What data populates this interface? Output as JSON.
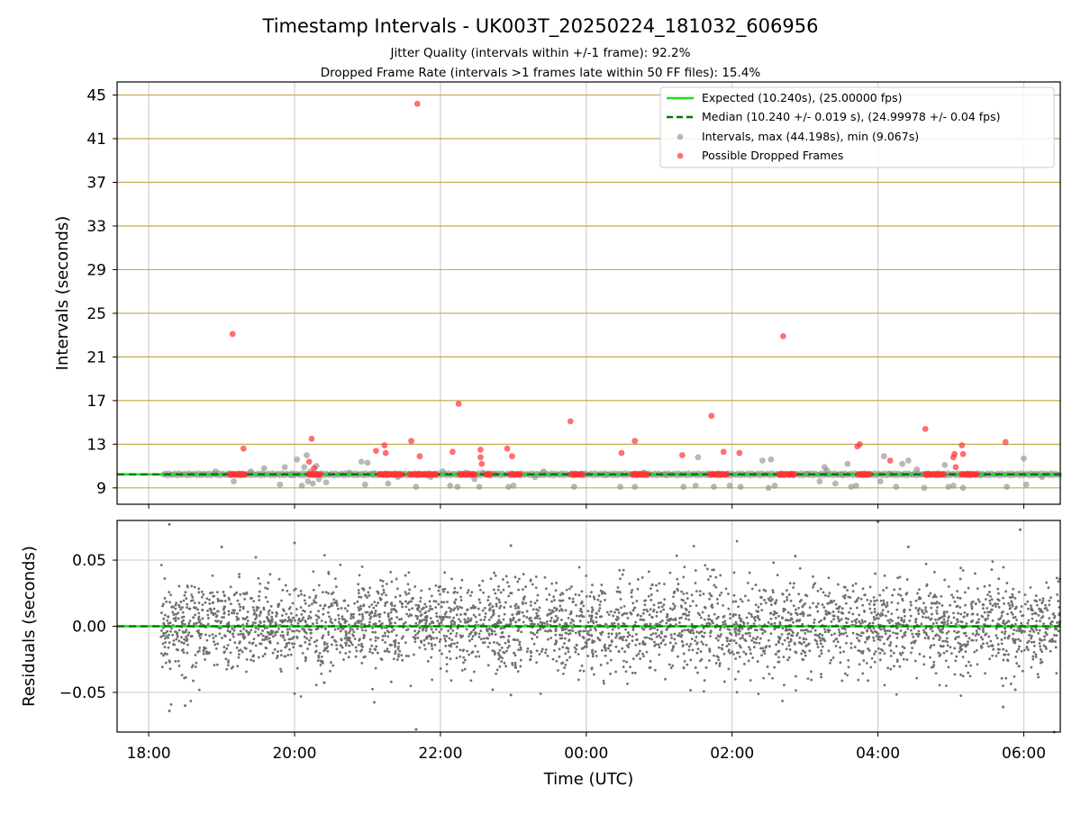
{
  "title": "Timestamp Intervals - UK003T_20250224_181032_606956",
  "subtitle_1": "Jitter Quality (intervals within +/-1 frame): 92.2%",
  "subtitle_2": "Dropped Frame Rate (intervals >1 frames late within 50 FF files): 15.4%",
  "colors": {
    "expected": "#22dd22",
    "median": "#007700",
    "intervals": "#888888",
    "dropped": "#ff3333",
    "threshold_grid": "#c8a850",
    "residuals": "#707070"
  },
  "chart_data": [
    {
      "type": "scatter",
      "ylabel": "Intervals (seconds)",
      "xlim": [
        "17:34",
        "06:30"
      ],
      "ylim": [
        7.5,
        46.2
      ],
      "yticks": [
        "9",
        "13",
        "17",
        "21",
        "25",
        "29",
        "33",
        "37",
        "41",
        "45"
      ],
      "grid": true,
      "legend_position": "top-right",
      "legend": [
        "Expected (10.240s), (25.00000 fps)",
        "Median (10.240 +/- 0.019 s), (24.99978 +/- 0.04 fps)",
        "Intervals, max (44.198s), min (9.067s)",
        "Possible Dropped Frames"
      ],
      "expected_interval": 10.24,
      "median_interval": 10.24,
      "intervals_max": 44.198,
      "intervals_min": 9.067,
      "dropped_frames": [
        {
          "x": "19:09",
          "y": 23.1
        },
        {
          "x": "19:18",
          "y": 12.6
        },
        {
          "x": "20:12",
          "y": 11.4
        },
        {
          "x": "20:14",
          "y": 13.5
        },
        {
          "x": "20:16",
          "y": 10.8
        },
        {
          "x": "21:07",
          "y": 12.4
        },
        {
          "x": "21:14",
          "y": 12.9
        },
        {
          "x": "21:15",
          "y": 12.2
        },
        {
          "x": "21:36",
          "y": 13.3
        },
        {
          "x": "21:41",
          "y": 44.2
        },
        {
          "x": "21:43",
          "y": 11.9
        },
        {
          "x": "22:10",
          "y": 12.3
        },
        {
          "x": "22:15",
          "y": 16.7
        },
        {
          "x": "22:33",
          "y": 12.5
        },
        {
          "x": "22:33",
          "y": 11.8
        },
        {
          "x": "22:34",
          "y": 11.2
        },
        {
          "x": "22:55",
          "y": 12.6
        },
        {
          "x": "22:59",
          "y": 11.9
        },
        {
          "x": "23:47",
          "y": 15.1
        },
        {
          "x": "00:29",
          "y": 12.2
        },
        {
          "x": "00:40",
          "y": 13.3
        },
        {
          "x": "01:19",
          "y": 12.0
        },
        {
          "x": "01:43",
          "y": 15.6
        },
        {
          "x": "01:53",
          "y": 12.3
        },
        {
          "x": "02:06",
          "y": 12.2
        },
        {
          "x": "02:42",
          "y": 22.9
        },
        {
          "x": "03:43",
          "y": 12.8
        },
        {
          "x": "03:45",
          "y": 13.0
        },
        {
          "x": "04:10",
          "y": 11.5
        },
        {
          "x": "04:39",
          "y": 14.4
        },
        {
          "x": "05:02",
          "y": 11.8
        },
        {
          "x": "05:03",
          "y": 12.1
        },
        {
          "x": "05:04",
          "y": 10.9
        },
        {
          "x": "05:09",
          "y": 12.9
        },
        {
          "x": "05:10",
          "y": 12.1
        },
        {
          "x": "05:45",
          "y": 13.2
        }
      ],
      "dropped_frame_clusters": [
        {
          "from": "19:07",
          "to": "19:19",
          "y": 10.24
        },
        {
          "from": "20:12",
          "to": "20:22",
          "y": 10.24
        },
        {
          "from": "21:10",
          "to": "21:28",
          "y": 10.24
        },
        {
          "from": "21:35",
          "to": "21:56",
          "y": 10.24
        },
        {
          "from": "22:16",
          "to": "22:28",
          "y": 10.24
        },
        {
          "from": "22:38",
          "to": "22:42",
          "y": 10.24
        },
        {
          "from": "22:58",
          "to": "23:06",
          "y": 10.24
        },
        {
          "from": "23:48",
          "to": "23:58",
          "y": 10.24
        },
        {
          "from": "00:38",
          "to": "00:51",
          "y": 10.24
        },
        {
          "from": "01:42",
          "to": "01:56",
          "y": 10.24
        },
        {
          "from": "02:39",
          "to": "02:52",
          "y": 10.24
        },
        {
          "from": "03:44",
          "to": "03:54",
          "y": 10.24
        },
        {
          "from": "04:39",
          "to": "04:54",
          "y": 10.24
        },
        {
          "from": "05:09",
          "to": "05:22",
          "y": 10.24
        }
      ],
      "interval_points": [
        {
          "x": "18:55",
          "y": 10.5
        },
        {
          "x": "19:10",
          "y": 9.6
        },
        {
          "x": "19:24",
          "y": 10.5
        },
        {
          "x": "19:35",
          "y": 10.8
        },
        {
          "x": "19:48",
          "y": 9.3
        },
        {
          "x": "19:52",
          "y": 10.9
        },
        {
          "x": "19:58",
          "y": 10.2
        },
        {
          "x": "20:02",
          "y": 11.6
        },
        {
          "x": "20:06",
          "y": 9.2
        },
        {
          "x": "20:08",
          "y": 10.9
        },
        {
          "x": "20:10",
          "y": 12.0
        },
        {
          "x": "20:11",
          "y": 9.6
        },
        {
          "x": "20:13",
          "y": 10.5
        },
        {
          "x": "20:15",
          "y": 9.4
        },
        {
          "x": "20:18",
          "y": 11.0
        },
        {
          "x": "20:20",
          "y": 9.8
        },
        {
          "x": "20:26",
          "y": 9.5
        },
        {
          "x": "20:45",
          "y": 10.4
        },
        {
          "x": "20:55",
          "y": 11.4
        },
        {
          "x": "20:58",
          "y": 9.3
        },
        {
          "x": "21:00",
          "y": 11.3
        },
        {
          "x": "21:05",
          "y": 10.3
        },
        {
          "x": "21:17",
          "y": 9.4
        },
        {
          "x": "21:25",
          "y": 10.0
        },
        {
          "x": "21:40",
          "y": 9.1
        },
        {
          "x": "21:52",
          "y": 10.0
        },
        {
          "x": "22:02",
          "y": 10.5
        },
        {
          "x": "22:08",
          "y": 9.2
        },
        {
          "x": "22:14",
          "y": 9.1
        },
        {
          "x": "22:21",
          "y": 10.4
        },
        {
          "x": "22:28",
          "y": 9.8
        },
        {
          "x": "22:32",
          "y": 9.1
        },
        {
          "x": "22:35",
          "y": 10.4
        },
        {
          "x": "22:45",
          "y": 10.3
        },
        {
          "x": "22:56",
          "y": 9.1
        },
        {
          "x": "23:00",
          "y": 9.2
        },
        {
          "x": "23:18",
          "y": 10.0
        },
        {
          "x": "23:25",
          "y": 10.5
        },
        {
          "x": "23:50",
          "y": 9.1
        },
        {
          "x": "00:16",
          "y": 10.2
        },
        {
          "x": "00:28",
          "y": 9.1
        },
        {
          "x": "00:40",
          "y": 9.1
        },
        {
          "x": "00:47",
          "y": 10.4
        },
        {
          "x": "01:05",
          "y": 10.2
        },
        {
          "x": "01:20",
          "y": 9.1
        },
        {
          "x": "01:30",
          "y": 9.2
        },
        {
          "x": "01:32",
          "y": 11.8
        },
        {
          "x": "01:45",
          "y": 9.1
        },
        {
          "x": "01:58",
          "y": 9.2
        },
        {
          "x": "02:07",
          "y": 9.1
        },
        {
          "x": "02:25",
          "y": 11.5
        },
        {
          "x": "02:30",
          "y": 9.0
        },
        {
          "x": "02:32",
          "y": 11.6
        },
        {
          "x": "02:35",
          "y": 9.2
        },
        {
          "x": "03:02",
          "y": 10.3
        },
        {
          "x": "03:12",
          "y": 9.6
        },
        {
          "x": "03:16",
          "y": 10.9
        },
        {
          "x": "03:18",
          "y": 10.6
        },
        {
          "x": "03:25",
          "y": 9.4
        },
        {
          "x": "03:30",
          "y": 10.2
        },
        {
          "x": "03:35",
          "y": 11.2
        },
        {
          "x": "03:38",
          "y": 9.1
        },
        {
          "x": "03:42",
          "y": 9.2
        },
        {
          "x": "04:02",
          "y": 9.6
        },
        {
          "x": "04:05",
          "y": 11.9
        },
        {
          "x": "04:10",
          "y": 10.3
        },
        {
          "x": "04:15",
          "y": 9.1
        },
        {
          "x": "04:20",
          "y": 11.2
        },
        {
          "x": "04:25",
          "y": 11.5
        },
        {
          "x": "04:32",
          "y": 10.7
        },
        {
          "x": "04:38",
          "y": 9.0
        },
        {
          "x": "04:55",
          "y": 11.1
        },
        {
          "x": "04:58",
          "y": 9.1
        },
        {
          "x": "05:02",
          "y": 9.2
        },
        {
          "x": "05:10",
          "y": 9.0
        },
        {
          "x": "05:25",
          "y": 10.2
        },
        {
          "x": "05:46",
          "y": 9.1
        },
        {
          "x": "06:00",
          "y": 11.7
        },
        {
          "x": "06:02",
          "y": 9.3
        },
        {
          "x": "06:15",
          "y": 10.0
        }
      ]
    },
    {
      "type": "scatter",
      "xlabel": "Time (UTC)",
      "ylabel": "Residuals (seconds)",
      "xticks": [
        "18:00",
        "20:00",
        "22:00",
        "00:00",
        "02:00",
        "04:00",
        "06:00"
      ],
      "yticks": [
        "0.05",
        "0.00",
        "−0.05"
      ],
      "ylim": [
        -0.08,
        0.08
      ],
      "grid": true,
      "x_range": [
        "18:10",
        "06:30"
      ],
      "residual_spread": 0.02,
      "residual_points_count": 3600,
      "outliers": [
        {
          "x": "18:17",
          "y": 0.077
        },
        {
          "x": "18:17",
          "y": -0.064
        },
        {
          "x": "18:30",
          "y": -0.06
        },
        {
          "x": "19:00",
          "y": 0.06
        },
        {
          "x": "20:00",
          "y": 0.063
        },
        {
          "x": "20:00",
          "y": -0.051
        },
        {
          "x": "21:40",
          "y": -0.078
        },
        {
          "x": "22:43",
          "y": -0.048
        },
        {
          "x": "22:58",
          "y": 0.061
        },
        {
          "x": "22:58",
          "y": -0.052
        },
        {
          "x": "02:52",
          "y": 0.053
        },
        {
          "x": "04:00",
          "y": 0.079
        },
        {
          "x": "04:25",
          "y": 0.06
        },
        {
          "x": "05:43",
          "y": -0.061
        },
        {
          "x": "05:53",
          "y": -0.048
        },
        {
          "x": "05:57",
          "y": 0.073
        },
        {
          "x": "06:25",
          "y": -0.08
        }
      ]
    }
  ]
}
